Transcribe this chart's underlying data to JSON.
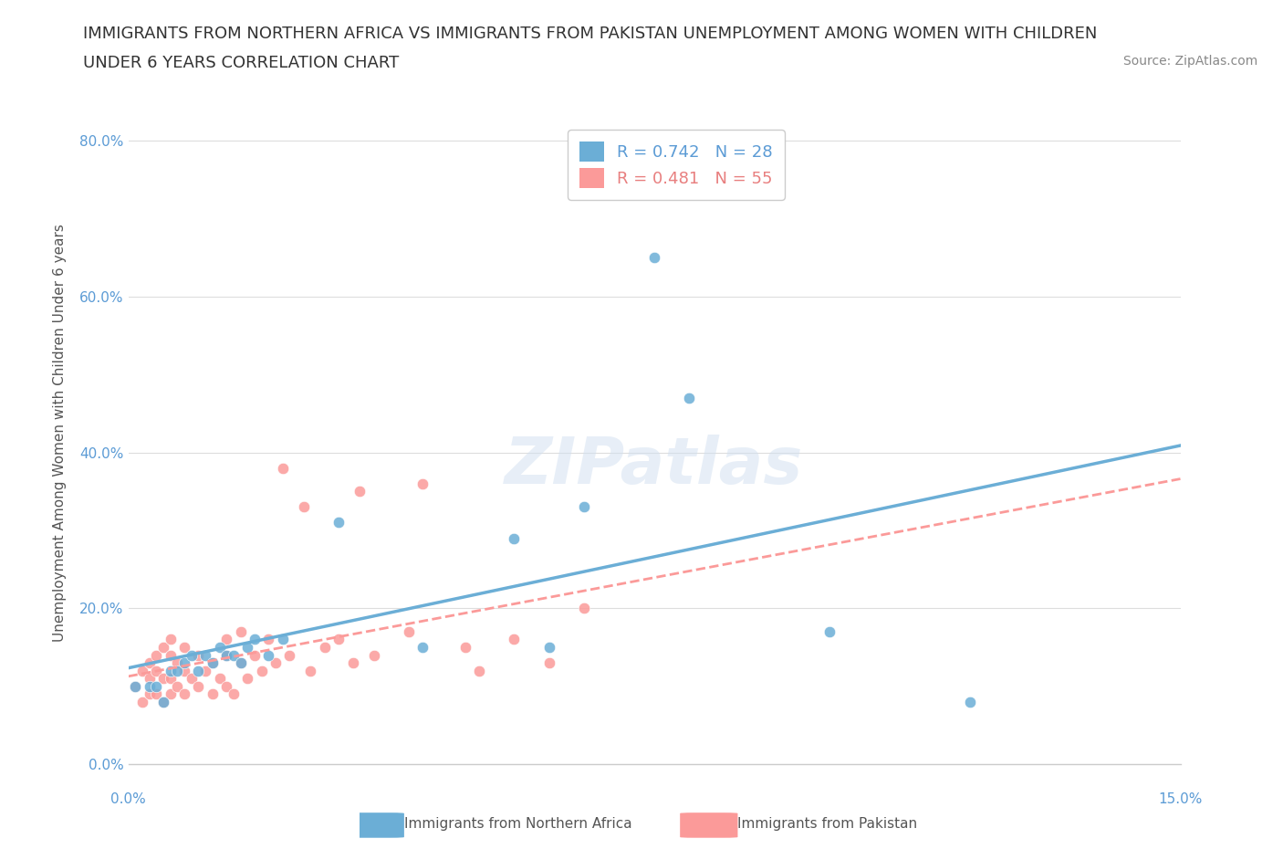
{
  "title_line1": "IMMIGRANTS FROM NORTHERN AFRICA VS IMMIGRANTS FROM PAKISTAN UNEMPLOYMENT AMONG WOMEN WITH CHILDREN",
  "title_line2": "UNDER 6 YEARS CORRELATION CHART",
  "source": "Source: ZipAtlas.com",
  "ylabel": "Unemployment Among Women with Children Under 6 years",
  "xlim": [
    0.0,
    0.15
  ],
  "ylim": [
    0.0,
    0.85
  ],
  "ytick_labels": [
    "0.0%",
    "20.0%",
    "40.0%",
    "60.0%",
    "80.0%"
  ],
  "yticks": [
    0.0,
    0.2,
    0.4,
    0.6,
    0.8
  ],
  "color_northern_africa": "#6baed6",
  "color_pakistan": "#fb9a99",
  "R_northern_africa": 0.742,
  "N_northern_africa": 28,
  "R_pakistan": 0.481,
  "N_pakistan": 55,
  "northern_africa_x": [
    0.001,
    0.003,
    0.004,
    0.005,
    0.006,
    0.007,
    0.008,
    0.009,
    0.01,
    0.011,
    0.012,
    0.013,
    0.014,
    0.015,
    0.016,
    0.017,
    0.018,
    0.02,
    0.022,
    0.03,
    0.042,
    0.055,
    0.06,
    0.065,
    0.075,
    0.08,
    0.1,
    0.12
  ],
  "northern_africa_y": [
    0.1,
    0.1,
    0.1,
    0.08,
    0.12,
    0.12,
    0.13,
    0.14,
    0.12,
    0.14,
    0.13,
    0.15,
    0.14,
    0.14,
    0.13,
    0.15,
    0.16,
    0.14,
    0.16,
    0.31,
    0.15,
    0.29,
    0.15,
    0.33,
    0.65,
    0.47,
    0.17,
    0.08
  ],
  "pakistan_x": [
    0.001,
    0.002,
    0.002,
    0.003,
    0.003,
    0.003,
    0.004,
    0.004,
    0.004,
    0.005,
    0.005,
    0.005,
    0.006,
    0.006,
    0.006,
    0.006,
    0.007,
    0.007,
    0.008,
    0.008,
    0.008,
    0.009,
    0.01,
    0.01,
    0.011,
    0.012,
    0.012,
    0.013,
    0.014,
    0.014,
    0.014,
    0.015,
    0.016,
    0.016,
    0.017,
    0.018,
    0.019,
    0.02,
    0.021,
    0.022,
    0.023,
    0.025,
    0.026,
    0.028,
    0.03,
    0.032,
    0.033,
    0.035,
    0.04,
    0.042,
    0.048,
    0.05,
    0.055,
    0.06,
    0.065
  ],
  "pakistan_y": [
    0.1,
    0.08,
    0.12,
    0.09,
    0.11,
    0.13,
    0.09,
    0.12,
    0.14,
    0.08,
    0.11,
    0.15,
    0.09,
    0.11,
    0.14,
    0.16,
    0.1,
    0.13,
    0.09,
    0.12,
    0.15,
    0.11,
    0.1,
    0.14,
    0.12,
    0.09,
    0.13,
    0.11,
    0.1,
    0.14,
    0.16,
    0.09,
    0.13,
    0.17,
    0.11,
    0.14,
    0.12,
    0.16,
    0.13,
    0.38,
    0.14,
    0.33,
    0.12,
    0.15,
    0.16,
    0.13,
    0.35,
    0.14,
    0.17,
    0.36,
    0.15,
    0.12,
    0.16,
    0.13,
    0.2
  ],
  "background_color": "#ffffff",
  "grid_color": "#dddddd",
  "title_fontsize": 13,
  "axis_label_fontsize": 11,
  "tick_fontsize": 11,
  "legend_fontsize": 13
}
